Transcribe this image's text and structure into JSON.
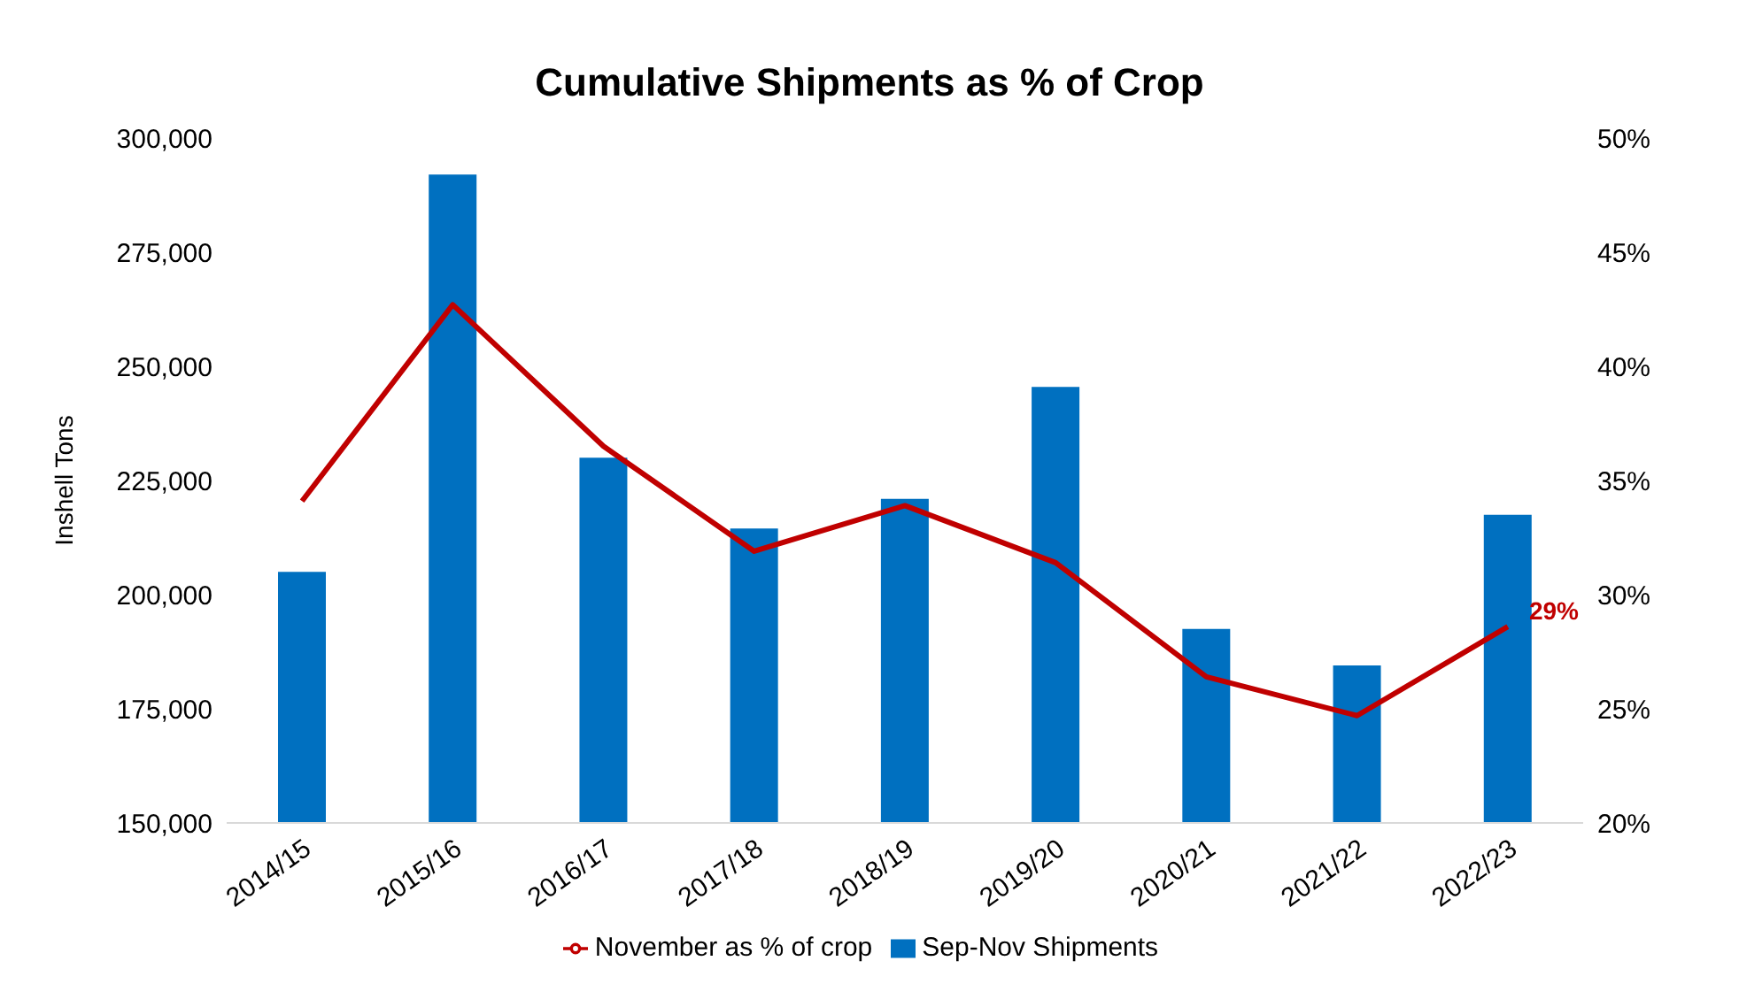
{
  "chart_data": {
    "type": "bar",
    "title": "Cumulative Shipments as % of Crop",
    "ylabel": "Inshell Tons",
    "categories": [
      "2014/15",
      "2015/16",
      "2016/17",
      "2017/18",
      "2018/19",
      "2019/20",
      "2020/21",
      "2021/22",
      "2022/23"
    ],
    "series": [
      {
        "name": "Sep-Nov Shipments",
        "color": "#0070c0",
        "values": [
          205000,
          292000,
          230000,
          214500,
          221000,
          245500,
          192500,
          184500,
          217500
        ]
      },
      {
        "name": "November as % of crop",
        "type": "line",
        "axis": "y2",
        "color": "#c00000",
        "values": [
          34.1,
          42.7,
          36.5,
          31.9,
          33.9,
          31.4,
          26.4,
          24.7,
          28.6
        ],
        "value_labels": [
          null,
          null,
          null,
          null,
          null,
          null,
          null,
          null,
          "29%"
        ]
      }
    ],
    "ylim": [
      150000,
      300000
    ],
    "yticks": [
      {
        "value": 150000,
        "label": "150,000"
      },
      {
        "value": 175000,
        "label": "175,000"
      },
      {
        "value": 200000,
        "label": "200,000"
      },
      {
        "value": 225000,
        "label": "225,000"
      },
      {
        "value": 250000,
        "label": "250,000"
      },
      {
        "value": 275000,
        "label": "275,000"
      },
      {
        "value": 300000,
        "label": "300,000"
      }
    ],
    "y2lim": [
      20,
      50
    ],
    "y2ticks": [
      {
        "value": 20,
        "label": "20%"
      },
      {
        "value": 25,
        "label": "25%"
      },
      {
        "value": 30,
        "label": "30%"
      },
      {
        "value": 35,
        "label": "35%"
      },
      {
        "value": 40,
        "label": "40%"
      },
      {
        "value": 45,
        "label": "45%"
      },
      {
        "value": 50,
        "label": "50%"
      }
    ],
    "legend": "bottom",
    "grid": false
  }
}
